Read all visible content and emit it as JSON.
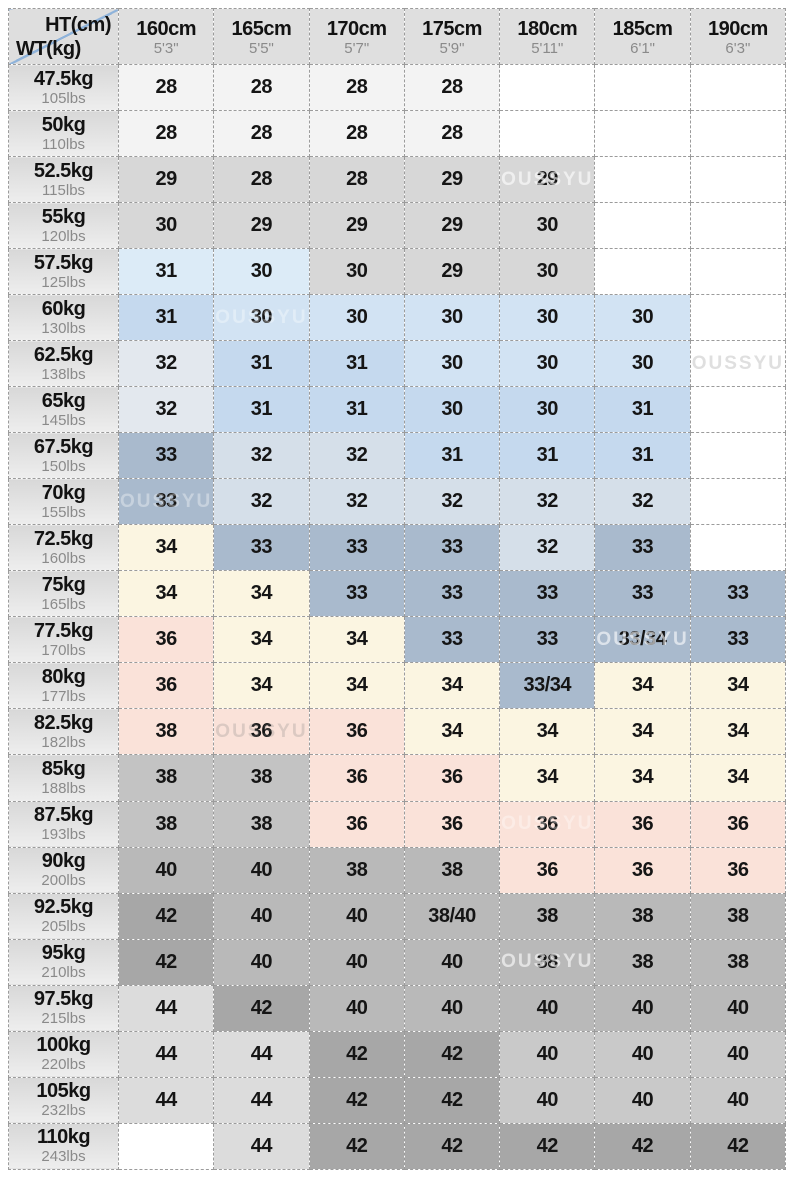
{
  "watermark_text": "OUSSYU",
  "header": {
    "ht_label": "HT(cm)",
    "wt_label": "WT(kg)"
  },
  "palette": {
    "w": "#ffffff",
    "p": "#f3f3f3",
    "lg": "#d7d7d7",
    "lg2": "#dcdcdc",
    "mg": "#c3c3c3",
    "mg2": "#c9c9c9",
    "g": "#b9b9b9",
    "dg": "#a7a7a7",
    "b1": "#dcebf7",
    "b2": "#d2e3f3",
    "b3": "#c5d9ee",
    "s1": "#e3e8ee",
    "s2": "#d5dfe9",
    "s3": "#a9bacd",
    "cr": "#fbf5e1",
    "pk": "#fae2d9"
  },
  "chart_data": {
    "type": "table",
    "columns": [
      {
        "cm": "160cm",
        "ft": "5'3\""
      },
      {
        "cm": "165cm",
        "ft": "5'5\""
      },
      {
        "cm": "170cm",
        "ft": "5'7\""
      },
      {
        "cm": "175cm",
        "ft": "5'9\""
      },
      {
        "cm": "180cm",
        "ft": "5'11\""
      },
      {
        "cm": "185cm",
        "ft": "6'1\""
      },
      {
        "cm": "190cm",
        "ft": "6'3\""
      }
    ],
    "rows": [
      {
        "kg": "47.5kg",
        "lbs": "105lbs",
        "sizes": [
          "28",
          "28",
          "28",
          "28",
          null,
          null,
          null
        ],
        "colors": [
          "p",
          "p",
          "p",
          "p",
          "w",
          "w",
          "w"
        ]
      },
      {
        "kg": "50kg",
        "lbs": "110lbs",
        "sizes": [
          "28",
          "28",
          "28",
          "28",
          null,
          null,
          null
        ],
        "colors": [
          "p",
          "p",
          "p",
          "p",
          "w",
          "w",
          "w"
        ]
      },
      {
        "kg": "52.5kg",
        "lbs": "115lbs",
        "sizes": [
          "29",
          "28",
          "28",
          "29",
          "29",
          null,
          null
        ],
        "colors": [
          "lg",
          "lg",
          "lg",
          "lg",
          "lg",
          "w",
          "w"
        ]
      },
      {
        "kg": "55kg",
        "lbs": "120lbs",
        "sizes": [
          "30",
          "29",
          "29",
          "29",
          "30",
          null,
          null
        ],
        "colors": [
          "lg",
          "lg",
          "lg",
          "lg",
          "lg",
          "w",
          "w"
        ]
      },
      {
        "kg": "57.5kg",
        "lbs": "125lbs",
        "sizes": [
          "31",
          "30",
          "30",
          "29",
          "30",
          null,
          null
        ],
        "colors": [
          "b1",
          "b1",
          "lg",
          "lg",
          "lg",
          "w",
          "w"
        ]
      },
      {
        "kg": "60kg",
        "lbs": "130lbs",
        "sizes": [
          "31",
          "30",
          "30",
          "30",
          "30",
          "30",
          null
        ],
        "colors": [
          "b3",
          "b2",
          "b2",
          "b2",
          "b2",
          "b2",
          "w"
        ]
      },
      {
        "kg": "62.5kg",
        "lbs": "138lbs",
        "sizes": [
          "32",
          "31",
          "31",
          "30",
          "30",
          "30",
          null
        ],
        "colors": [
          "s1",
          "b3",
          "b3",
          "b2",
          "b2",
          "b2",
          "w"
        ]
      },
      {
        "kg": "65kg",
        "lbs": "145lbs",
        "sizes": [
          "32",
          "31",
          "31",
          "30",
          "30",
          "31",
          null
        ],
        "colors": [
          "s1",
          "b3",
          "b3",
          "b3",
          "b3",
          "b3",
          "w"
        ]
      },
      {
        "kg": "67.5kg",
        "lbs": "150lbs",
        "sizes": [
          "33",
          "32",
          "32",
          "31",
          "31",
          "31",
          null
        ],
        "colors": [
          "s3",
          "s2",
          "s2",
          "b3",
          "b3",
          "b3",
          "w"
        ]
      },
      {
        "kg": "70kg",
        "lbs": "155lbs",
        "sizes": [
          "33",
          "32",
          "32",
          "32",
          "32",
          "32",
          null
        ],
        "colors": [
          "s3",
          "s2",
          "s2",
          "s2",
          "s2",
          "s2",
          "w"
        ]
      },
      {
        "kg": "72.5kg",
        "lbs": "160lbs",
        "sizes": [
          "34",
          "33",
          "33",
          "33",
          "32",
          "33",
          null
        ],
        "colors": [
          "cr",
          "s3",
          "s3",
          "s3",
          "s2",
          "s3",
          "w"
        ]
      },
      {
        "kg": "75kg",
        "lbs": "165lbs",
        "sizes": [
          "34",
          "34",
          "33",
          "33",
          "33",
          "33",
          "33"
        ],
        "colors": [
          "cr",
          "cr",
          "s3",
          "s3",
          "s3",
          "s3",
          "s3"
        ]
      },
      {
        "kg": "77.5kg",
        "lbs": "170lbs",
        "sizes": [
          "36",
          "34",
          "34",
          "33",
          "33",
          "33/34",
          "33"
        ],
        "colors": [
          "pk",
          "cr",
          "cr",
          "s3",
          "s3",
          "s3",
          "s3"
        ]
      },
      {
        "kg": "80kg",
        "lbs": "177lbs",
        "sizes": [
          "36",
          "34",
          "34",
          "34",
          "33/34",
          "34",
          "34"
        ],
        "colors": [
          "pk",
          "cr",
          "cr",
          "cr",
          "s3",
          "cr",
          "cr"
        ]
      },
      {
        "kg": "82.5kg",
        "lbs": "182lbs",
        "sizes": [
          "38",
          "36",
          "36",
          "34",
          "34",
          "34",
          "34"
        ],
        "colors": [
          "pk",
          "pk",
          "pk",
          "cr",
          "cr",
          "cr",
          "cr"
        ]
      },
      {
        "kg": "85kg",
        "lbs": "188lbs",
        "sizes": [
          "38",
          "38",
          "36",
          "36",
          "34",
          "34",
          "34"
        ],
        "colors": [
          "mg",
          "mg",
          "pk",
          "pk",
          "cr",
          "cr",
          "cr"
        ]
      },
      {
        "kg": "87.5kg",
        "lbs": "193lbs",
        "sizes": [
          "38",
          "38",
          "36",
          "36",
          "36",
          "36",
          "36"
        ],
        "colors": [
          "mg",
          "mg",
          "pk",
          "pk",
          "pk",
          "pk",
          "pk"
        ]
      },
      {
        "kg": "90kg",
        "lbs": "200lbs",
        "sizes": [
          "40",
          "40",
          "38",
          "38",
          "36",
          "36",
          "36"
        ],
        "colors": [
          "g",
          "g",
          "g",
          "g",
          "pk",
          "pk",
          "pk"
        ]
      },
      {
        "kg": "92.5kg",
        "lbs": "205lbs",
        "sizes": [
          "42",
          "40",
          "40",
          "38/40",
          "38",
          "38",
          "38"
        ],
        "colors": [
          "dg",
          "g",
          "g",
          "g",
          "g",
          "g",
          "g"
        ]
      },
      {
        "kg": "95kg",
        "lbs": "210lbs",
        "sizes": [
          "42",
          "40",
          "40",
          "40",
          "38",
          "38",
          "38"
        ],
        "colors": [
          "dg",
          "g",
          "g",
          "g",
          "g",
          "g",
          "g"
        ]
      },
      {
        "kg": "97.5kg",
        "lbs": "215lbs",
        "sizes": [
          "44",
          "42",
          "40",
          "40",
          "40",
          "40",
          "40"
        ],
        "colors": [
          "lg2",
          "dg",
          "g",
          "g",
          "g",
          "g",
          "g"
        ]
      },
      {
        "kg": "100kg",
        "lbs": "220lbs",
        "sizes": [
          "44",
          "44",
          "42",
          "42",
          "40",
          "40",
          "40"
        ],
        "colors": [
          "lg2",
          "lg2",
          "dg",
          "dg",
          "mg2",
          "mg2",
          "mg2"
        ]
      },
      {
        "kg": "105kg",
        "lbs": "232lbs",
        "sizes": [
          "44",
          "44",
          "42",
          "42",
          "40",
          "40",
          "40"
        ],
        "colors": [
          "lg2",
          "lg2",
          "dg",
          "dg",
          "mg2",
          "mg2",
          "mg2"
        ]
      },
      {
        "kg": "110kg",
        "lbs": "243lbs",
        "sizes": [
          null,
          "44",
          "42",
          "42",
          "42",
          "42",
          "42"
        ],
        "colors": [
          "w",
          "lg2",
          "dg",
          "dg",
          "dg",
          "dg",
          "dg"
        ]
      }
    ]
  },
  "watermarks": [
    {
      "row": 2,
      "col": 4,
      "tone": "white"
    },
    {
      "row": 5,
      "col": 1,
      "tone": "white-faint"
    },
    {
      "row": 6,
      "col": 6,
      "tone": "gray"
    },
    {
      "row": 9,
      "col": 0,
      "tone": "white-faint"
    },
    {
      "row": 12,
      "col": 5,
      "tone": "white"
    },
    {
      "row": 14,
      "col": 1,
      "tone": "gray"
    },
    {
      "row": 16,
      "col": 4,
      "tone": "white-faint"
    },
    {
      "row": 19,
      "col": 4,
      "tone": "white"
    }
  ]
}
